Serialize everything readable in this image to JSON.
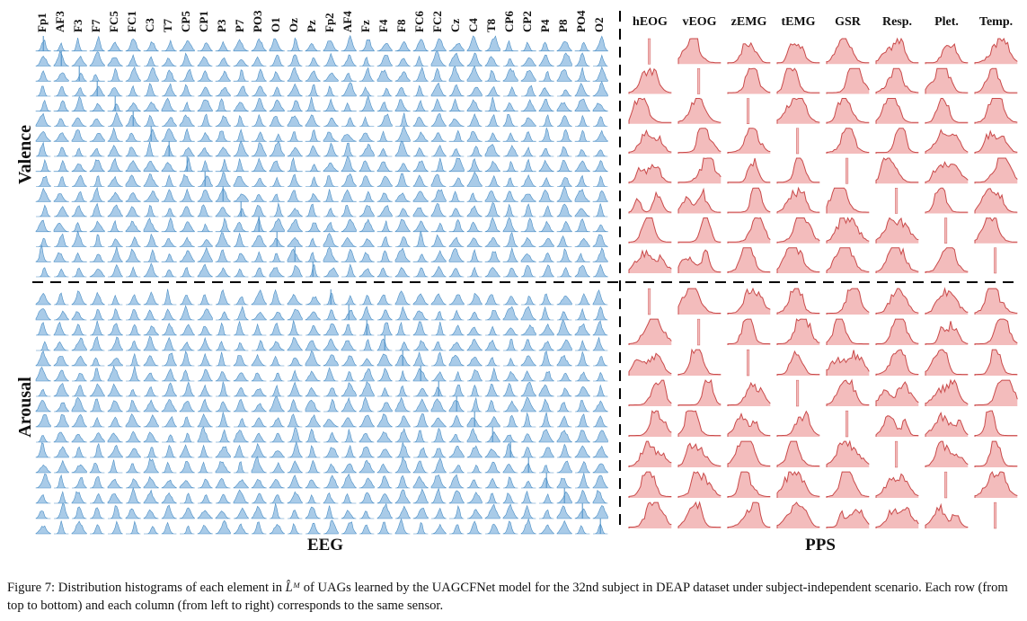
{
  "figure": {
    "eeg_channels": [
      "Fp1",
      "AF3",
      "F3",
      "F7",
      "FC5",
      "FC1",
      "C3",
      "T7",
      "CP5",
      "CP1",
      "P3",
      "P7",
      "PO3",
      "O1",
      "Oz",
      "Pz",
      "Fp2",
      "AF4",
      "Fz",
      "F4",
      "F8",
      "FC6",
      "FC2",
      "Cz",
      "C4",
      "T8",
      "CP6",
      "CP2",
      "P4",
      "P8",
      "PO4",
      "O2"
    ],
    "pps_channels": [
      "hEOG",
      "vEOG",
      "zEMG",
      "tEMG",
      "GSR",
      "Resp.",
      "Plet.",
      "Temp."
    ],
    "row_labels": {
      "valence": "Valence",
      "arousal": "Arousal"
    },
    "section_labels": {
      "eeg": "EEG",
      "pps": "PPS"
    },
    "colors": {
      "eeg": "#4a8ec5",
      "eeg_fill": "#a9cbe8",
      "pps": "#c94a4a",
      "pps_fill": "#f3bcbc",
      "divider": "#000000"
    }
  },
  "caption": {
    "prefix": "Figure 7: Distribution histograms of each element in ",
    "symbol": "L̂ᴹ",
    "suffix": " of UAGs learned by the UAGCFNet model for the 32nd subject in DEAP dataset under subject-independent scenario. Each row (from top to bottom) and each column (from left to right) corresponds to the same sensor."
  }
}
